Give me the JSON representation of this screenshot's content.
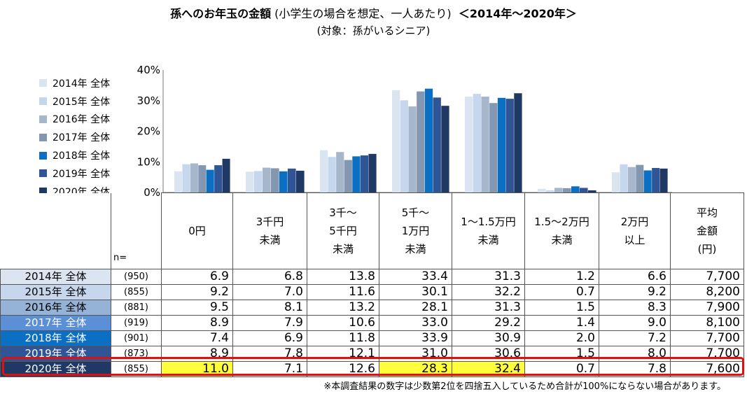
{
  "chart_data": {
    "type": "bar",
    "title": "孫へのお年玉の金額",
    "title_note": "(小学生の場合を想定、一人あたり)",
    "title_range": "＜2014年～2020年＞",
    "subtitle": "(対象：孫がいるシニア)",
    "ylim": [
      0,
      40
    ],
    "yticks": [
      "0%",
      "10%",
      "20%",
      "30%",
      "40%"
    ],
    "n_label": "n=",
    "columns": [
      [
        "0円"
      ],
      [
        "3千円",
        "未満"
      ],
      [
        "3千～",
        "5千円",
        "未満"
      ],
      [
        "5千～",
        "1万円",
        "未満"
      ],
      [
        "1～1.5万円",
        "未満"
      ],
      [
        "1.5～2万円",
        "未満"
      ],
      [
        "2万円",
        "以上"
      ],
      [
        "平均",
        "金額",
        "(円)"
      ]
    ],
    "series": [
      {
        "name": "2014年 全体",
        "n": "(950)",
        "color": "#dbe5f1",
        "values": [
          6.9,
          6.8,
          13.8,
          33.4,
          31.3,
          1.2,
          6.6
        ],
        "values_text": [
          "6.9",
          "6.8",
          "13.8",
          "33.4",
          "31.3",
          "1.2",
          "6.6"
        ],
        "avg": "7,700",
        "label_bg": "#dbe5f1",
        "label_fg": "#000000"
      },
      {
        "name": "2015年 全体",
        "n": "(855)",
        "color": "#c6d6ec",
        "values": [
          9.2,
          7.0,
          11.6,
          30.1,
          32.2,
          0.7,
          9.2
        ],
        "values_text": [
          "9.2",
          "7.0",
          "11.6",
          "30.1",
          "32.2",
          "0.7",
          "9.2"
        ],
        "avg": "8,200",
        "label_bg": "#c6d6ec",
        "label_fg": "#000000"
      },
      {
        "name": "2016年 全体",
        "n": "(881)",
        "color": "#a6b7cc",
        "values": [
          9.5,
          8.1,
          13.2,
          28.1,
          31.3,
          1.5,
          8.3
        ],
        "values_text": [
          "9.5",
          "8.1",
          "13.2",
          "28.1",
          "31.3",
          "1.5",
          "8.3"
        ],
        "avg": "7,900",
        "label_bg": "#95b3d7",
        "label_fg": "#000000"
      },
      {
        "name": "2017年 全体",
        "n": "(919)",
        "color": "#8497b0",
        "values": [
          8.9,
          7.9,
          10.6,
          33.0,
          29.2,
          1.4,
          9.0
        ],
        "values_text": [
          "8.9",
          "7.9",
          "10.6",
          "33.0",
          "29.2",
          "1.4",
          "9.0"
        ],
        "avg": "8,100",
        "label_bg": "#5b8fd6",
        "label_fg": "#ffffff"
      },
      {
        "name": "2018年 全体",
        "n": "(901)",
        "color": "#0b70c4",
        "values": [
          7.4,
          6.9,
          11.8,
          33.9,
          30.9,
          2.0,
          7.2
        ],
        "values_text": [
          "7.4",
          "6.9",
          "11.8",
          "33.9",
          "30.9",
          "2.0",
          "7.2"
        ],
        "avg": "7,700",
        "label_bg": "#0b70c4",
        "label_fg": "#ffffff"
      },
      {
        "name": "2019年 全体",
        "n": "(873)",
        "color": "#2f5597",
        "values": [
          8.9,
          7.8,
          12.1,
          31.0,
          30.6,
          1.5,
          8.0
        ],
        "values_text": [
          "8.9",
          "7.8",
          "12.1",
          "31.0",
          "30.6",
          "1.5",
          "8.0"
        ],
        "avg": "7,700",
        "label_bg": "#2f5597",
        "label_fg": "#ffffff"
      },
      {
        "name": "2020年 全体",
        "n": "(855)",
        "color": "#1f3864",
        "values": [
          11.0,
          7.1,
          12.6,
          28.3,
          32.4,
          0.7,
          7.8
        ],
        "values_text": [
          "11.0",
          "7.1",
          "12.6",
          "28.3",
          "32.4",
          "0.7",
          "7.8"
        ],
        "avg": "7,600",
        "label_bg": "#1f3864",
        "label_fg": "#ffffff"
      }
    ],
    "highlight_cells": [
      [
        6,
        0
      ],
      [
        6,
        3
      ],
      [
        6,
        4
      ]
    ],
    "highlight_row": 6
  },
  "footnote": "※本調査結果の数字は少数第2位を四捨五入しているため合計が100%にならない場合があります。"
}
